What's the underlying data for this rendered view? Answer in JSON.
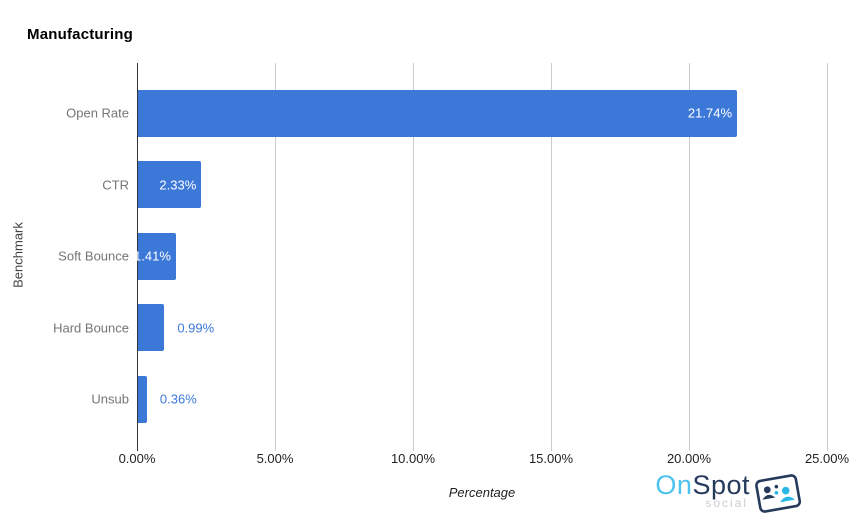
{
  "chart_data": {
    "type": "bar",
    "orientation": "horizontal",
    "title": "Manufacturing",
    "xlabel": "Percentage",
    "ylabel": "Benchmark",
    "categories": [
      "Open Rate",
      "CTR",
      "Soft Bounce",
      "Hard Bounce",
      "Unsub"
    ],
    "values": [
      21.74,
      2.33,
      1.41,
      0.99,
      0.36
    ],
    "value_labels": [
      "21.74%",
      "2.33%",
      "1.41%",
      "0.99%",
      "0.36%"
    ],
    "annotations_inside": [
      true,
      true,
      true,
      false,
      false
    ],
    "xlim": [
      0,
      25
    ],
    "x_tick_values": [
      0,
      5,
      10,
      15,
      20,
      25
    ],
    "x_tick_labels": [
      "0.00%",
      "5.00%",
      "10.00%",
      "15.00%",
      "20.00%",
      "25.00%"
    ],
    "grid": "vertical-only",
    "legend": "none",
    "colors": {
      "bar": "#3c78d8",
      "annotation_inside": "#ffffff",
      "annotation_outside": "#3c78d8",
      "gridline": "#cccccc",
      "axis_line": "#333333",
      "category_label": "#757575",
      "tick_label": "#222222",
      "title": "#000000"
    }
  },
  "logo": {
    "name": "OnSpot Social",
    "part1": "On",
    "part2": "Spot",
    "subtext": "social",
    "colors": {
      "part1": "#4ec3ee",
      "part2": "#263a5c",
      "subtext": "#c9ced3"
    }
  }
}
